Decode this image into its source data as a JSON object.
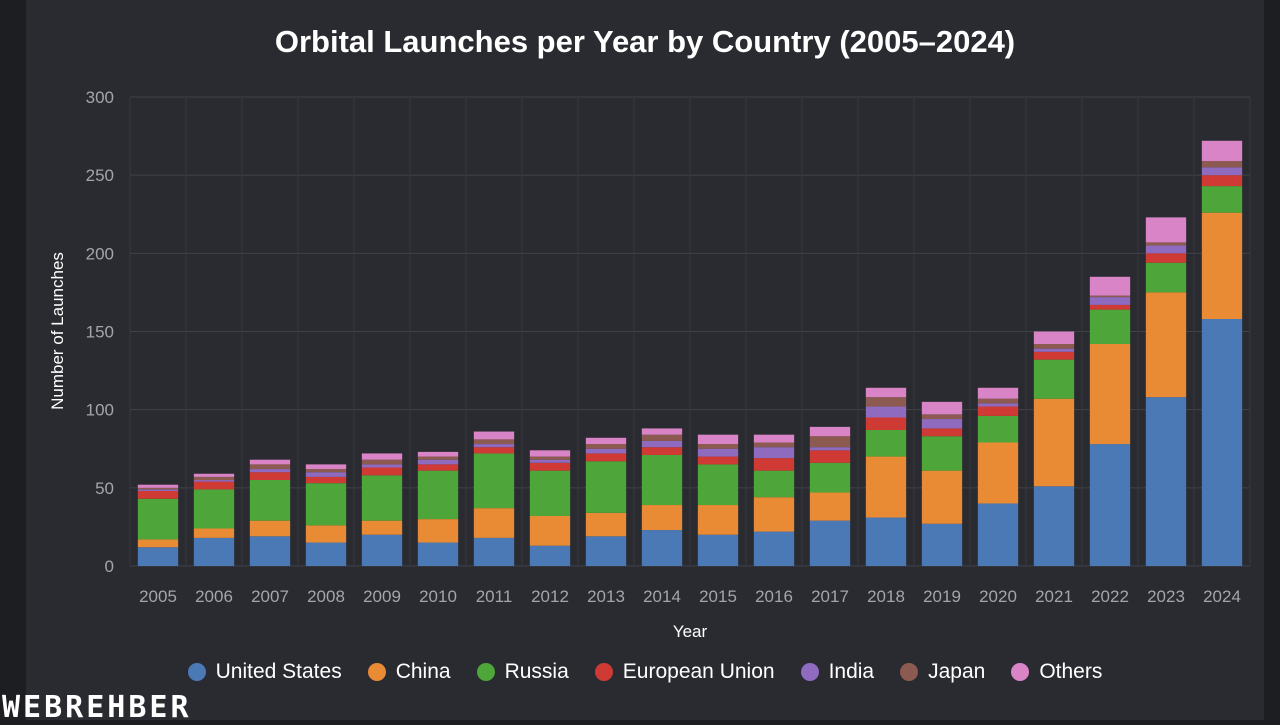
{
  "chart_data": {
    "type": "bar",
    "stacked": true,
    "title": "Orbital Launches per Year by Country (2005–2024)",
    "xlabel": "Year",
    "ylabel": "Number of Launches",
    "ylim": [
      0,
      300
    ],
    "yticks": [
      0,
      50,
      100,
      150,
      200,
      250,
      300
    ],
    "grid": true,
    "legend_position": "bottom",
    "categories": [
      "2005",
      "2006",
      "2007",
      "2008",
      "2009",
      "2010",
      "2011",
      "2012",
      "2013",
      "2014",
      "2015",
      "2016",
      "2017",
      "2018",
      "2019",
      "2020",
      "2021",
      "2022",
      "2023",
      "2024"
    ],
    "series": [
      {
        "name": "United States",
        "color": "#4a79b5",
        "values": [
          12,
          18,
          19,
          15,
          20,
          15,
          18,
          13,
          19,
          23,
          20,
          22,
          29,
          31,
          27,
          40,
          51,
          78,
          108,
          158
        ]
      },
      {
        "name": "China",
        "color": "#e98a35",
        "values": [
          5,
          6,
          10,
          11,
          9,
          15,
          19,
          19,
          15,
          16,
          19,
          22,
          18,
          39,
          34,
          39,
          56,
          64,
          67,
          68
        ]
      },
      {
        "name": "Russia",
        "color": "#4ea63a",
        "values": [
          26,
          25,
          26,
          27,
          29,
          31,
          35,
          29,
          33,
          32,
          26,
          17,
          19,
          17,
          22,
          17,
          25,
          22,
          19,
          17
        ]
      },
      {
        "name": "European Union",
        "color": "#cf3a34",
        "values": [
          5,
          5,
          5,
          4,
          5,
          4,
          4,
          5,
          5,
          5,
          5,
          8,
          8,
          8,
          5,
          6,
          5,
          3,
          6,
          7
        ]
      },
      {
        "name": "India",
        "color": "#8e6bbf",
        "values": [
          1,
          1,
          2,
          3,
          2,
          3,
          2,
          2,
          3,
          4,
          5,
          7,
          2,
          7,
          6,
          2,
          2,
          5,
          5,
          5
        ]
      },
      {
        "name": "Japan",
        "color": "#8d5a52",
        "values": [
          1,
          2,
          3,
          2,
          3,
          2,
          3,
          2,
          3,
          4,
          3,
          3,
          7,
          6,
          3,
          3,
          3,
          1,
          2,
          4
        ]
      },
      {
        "name": "Others",
        "color": "#d884c7",
        "values": [
          2,
          2,
          3,
          3,
          4,
          3,
          5,
          4,
          4,
          4,
          6,
          5,
          6,
          6,
          8,
          7,
          8,
          12,
          16,
          13
        ]
      }
    ]
  },
  "watermark": "WEBREHBER"
}
